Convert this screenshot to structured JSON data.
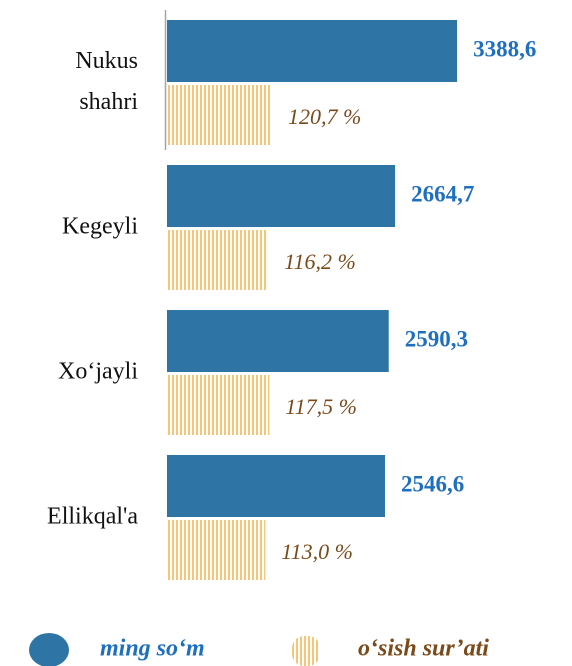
{
  "chart_data": {
    "type": "bar",
    "categories": [
      "Nukus shahri",
      "Kegeyli",
      "Xo‘jayli",
      "Ellikqal'a"
    ],
    "series": [
      {
        "name": "ming so‘m",
        "color": "#2e75a6",
        "label_color": "#1f6fbf",
        "values": [
          3388.6,
          2664.7,
          2590.3,
          2546.6
        ],
        "value_labels": [
          "3388,6",
          "2664,7",
          "2590,3",
          "2546,6"
        ]
      },
      {
        "name": "o‘sish sur’ati",
        "color": "#f6c678",
        "label_color": "#7b4a1a",
        "values": [
          120.7,
          116.2,
          117.5,
          113.0
        ],
        "value_labels": [
          "120,7 %",
          "116,2 %",
          "117,5 %",
          "113,0 %"
        ]
      }
    ]
  }
}
